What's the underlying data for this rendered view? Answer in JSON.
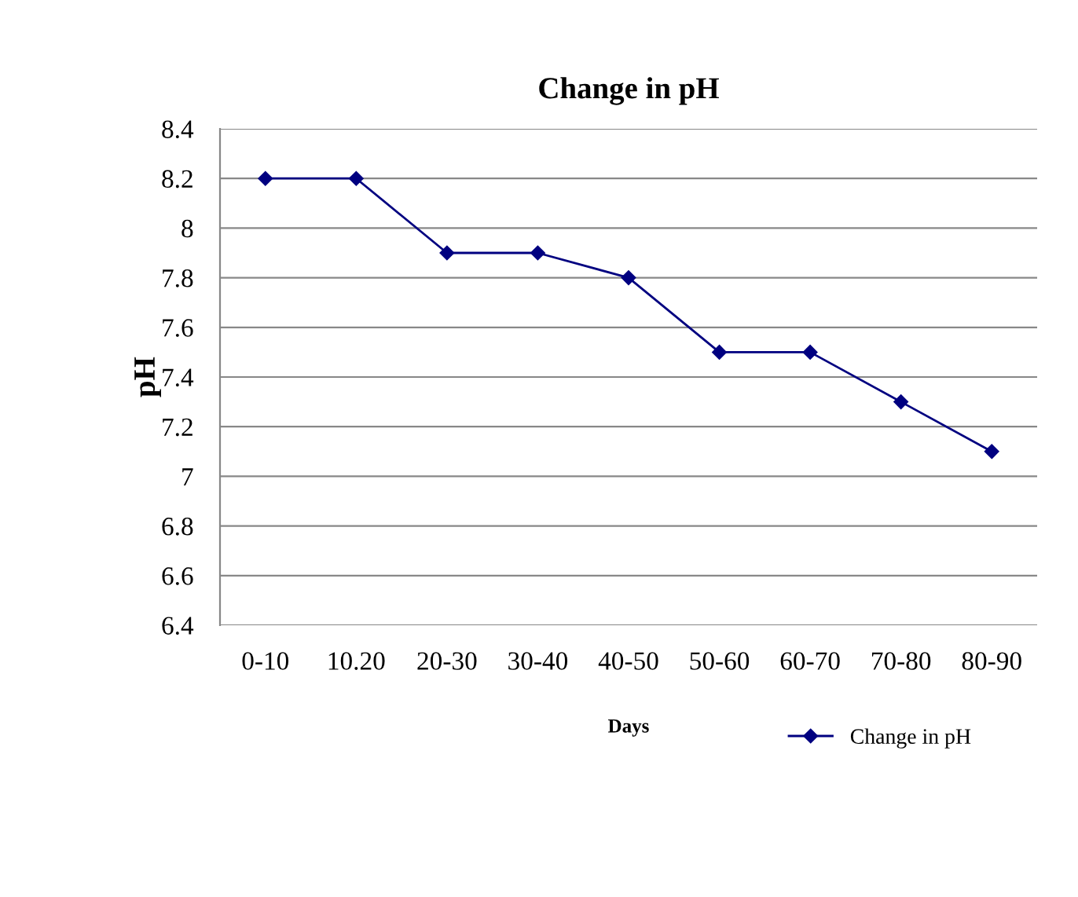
{
  "chart_data": {
    "type": "line",
    "title": "Change in pH",
    "xlabel": "Days",
    "ylabel": "pH",
    "categories": [
      "0-10",
      "10.20",
      "20-30",
      "30-40",
      "40-50",
      "50-60",
      "60-70",
      "70-80",
      "80-90"
    ],
    "series": [
      {
        "name": "Change in pH",
        "color": "#000080",
        "values": [
          8.2,
          8.2,
          7.9,
          7.9,
          7.8,
          7.5,
          7.5,
          7.3,
          7.1
        ]
      }
    ],
    "ylim": [
      6.4,
      8.4
    ],
    "yticks": [
      6.4,
      6.6,
      6.8,
      7,
      7.2,
      7.4,
      7.6,
      7.8,
      8,
      8.2,
      8.4
    ],
    "grid": "y",
    "legend": "bottom right",
    "marker": "diamond",
    "line_style": "solid"
  }
}
